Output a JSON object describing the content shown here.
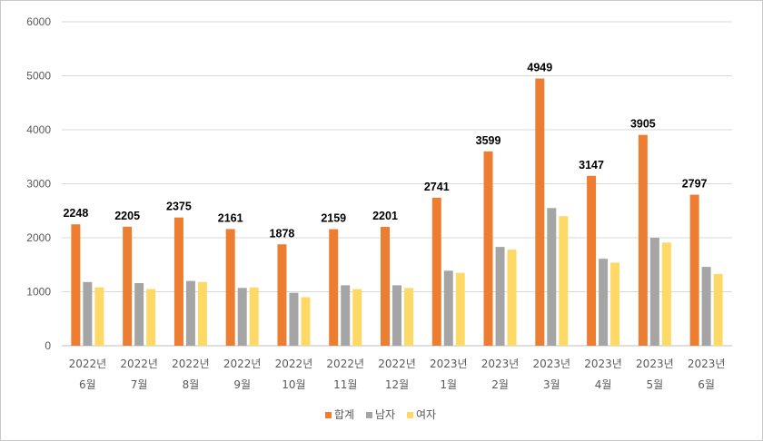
{
  "chart_data": {
    "type": "bar",
    "title": "",
    "xlabel": "",
    "ylabel": "",
    "ylim": [
      0,
      6000
    ],
    "yticks": [
      0,
      1000,
      2000,
      3000,
      4000,
      5000,
      6000
    ],
    "grid": true,
    "legend_position": "bottom",
    "categories": [
      [
        "2022년",
        "6월"
      ],
      [
        "2022년",
        "7월"
      ],
      [
        "2022년",
        "8월"
      ],
      [
        "2022년",
        "9월"
      ],
      [
        "2022년",
        "10월"
      ],
      [
        "2022년",
        "11월"
      ],
      [
        "2022년",
        "12월"
      ],
      [
        "2023년",
        "1월"
      ],
      [
        "2023년",
        "2월"
      ],
      [
        "2023년",
        "3월"
      ],
      [
        "2023년",
        "4월"
      ],
      [
        "2023년",
        "5월"
      ],
      [
        "2023년",
        "6월"
      ]
    ],
    "series": [
      {
        "name": "합계",
        "color": "#ED7D31",
        "labeled": true,
        "values": [
          2248,
          2205,
          2375,
          2161,
          1878,
          2159,
          2201,
          2741,
          3599,
          4949,
          3147,
          3905,
          2797
        ]
      },
      {
        "name": "남자",
        "color": "#A5A5A5",
        "labeled": false,
        "values": [
          1180,
          1160,
          1200,
          1070,
          980,
          1120,
          1120,
          1390,
          1830,
          2550,
          1610,
          2000,
          1460
        ]
      },
      {
        "name": "여자",
        "color": "#FFD966",
        "labeled": false,
        "values": [
          1080,
          1050,
          1180,
          1080,
          900,
          1050,
          1070,
          1350,
          1780,
          2400,
          1540,
          1910,
          1330
        ]
      }
    ]
  }
}
